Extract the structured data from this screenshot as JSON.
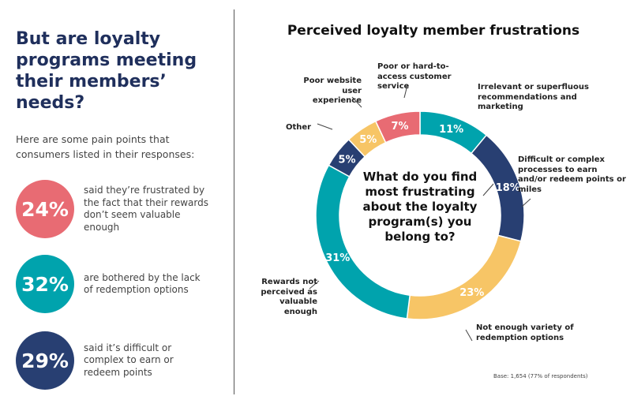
{
  "left": {
    "heading": "But are loyalty programs meeting their members’ needs?",
    "intro": "Here are some pain points that consumers listed in their responses:",
    "stats": [
      {
        "value": "24%",
        "text": "said they’re frustrated by the fact that their rewards don’t seem valuable enough",
        "color": "#e86b73"
      },
      {
        "value": "32%",
        "text": "are bothered by the lack of redemption options",
        "color": "#00a3ad"
      },
      {
        "value": "29%",
        "text": "said it’s difficult or complex to earn or redeem points",
        "color": "#283f72"
      }
    ]
  },
  "chart_data": {
    "type": "pie",
    "donut": true,
    "title": "Perceived loyalty member frustrations",
    "center_text": "What do you find most frustrating about the loyalty program(s) you belong to?",
    "slices": [
      {
        "label": "Irrelevant or superfluous recommendations and marketing",
        "value": 11,
        "value_label": "11%",
        "color": "#00a3ad"
      },
      {
        "label": "Difficult or complex processes to earn and/or redeem points or miles",
        "value": 18,
        "value_label": "18%",
        "color": "#283f72"
      },
      {
        "label": "Not enough variety of redemption options",
        "value": 23,
        "value_label": "23%",
        "color": "#f7c566"
      },
      {
        "label": "Rewards not perceived as valuable enough",
        "value": 31,
        "value_label": "31%",
        "color": "#00a3ad"
      },
      {
        "label": "Other",
        "value": 5,
        "value_label": "5%",
        "color": "#283f72"
      },
      {
        "label": "Poor website user experience",
        "value": 5,
        "value_label": "5%",
        "color": "#f7c566"
      },
      {
        "label": "Poor or hard-to-access customer service",
        "value": 7,
        "value_label": "7%",
        "color": "#e86b73"
      }
    ],
    "footnote": "Base: 1,654 (77% of respondents)"
  }
}
